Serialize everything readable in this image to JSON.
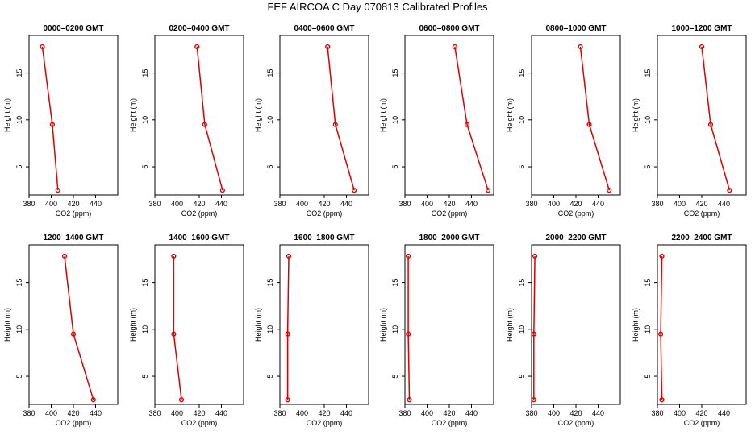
{
  "title": "FEF AIRCOA C  Day 070813  Calibrated Profiles",
  "chart_data": [
    {
      "type": "line",
      "title": "0000–0200 GMT",
      "xlabel": "CO2 (ppm)",
      "ylabel": "Height (m)",
      "xlim": [
        380,
        460
      ],
      "ylim": [
        2,
        19
      ],
      "xticks": [
        380,
        400,
        420,
        440
      ],
      "yticks": [
        5,
        10,
        15
      ],
      "grid": false,
      "series": [
        {
          "x": [
            392,
            401,
            406
          ],
          "y": [
            17.8,
            9.5,
            2.5
          ]
        }
      ]
    },
    {
      "type": "line",
      "title": "0200–0400 GMT",
      "xlabel": "CO2 (ppm)",
      "ylabel": "Height (m)",
      "xlim": [
        380,
        460
      ],
      "ylim": [
        2,
        19
      ],
      "xticks": [
        380,
        400,
        420,
        440
      ],
      "yticks": [
        5,
        10,
        15
      ],
      "grid": false,
      "series": [
        {
          "x": [
            418,
            425,
            441
          ],
          "y": [
            17.8,
            9.5,
            2.5
          ]
        }
      ]
    },
    {
      "type": "line",
      "title": "0400–0600 GMT",
      "xlabel": "CO2 (ppm)",
      "ylabel": "Height (m)",
      "xlim": [
        380,
        460
      ],
      "ylim": [
        2,
        19
      ],
      "xticks": [
        380,
        400,
        420,
        440
      ],
      "yticks": [
        5,
        10,
        15
      ],
      "grid": false,
      "series": [
        {
          "x": [
            423,
            430,
            447
          ],
          "y": [
            17.8,
            9.5,
            2.5
          ]
        }
      ]
    },
    {
      "type": "line",
      "title": "0600–0800 GMT",
      "xlabel": "CO2 (ppm)",
      "ylabel": "Height (m)",
      "xlim": [
        380,
        460
      ],
      "ylim": [
        2,
        19
      ],
      "xticks": [
        380,
        400,
        420,
        440
      ],
      "yticks": [
        5,
        10,
        15
      ],
      "grid": false,
      "series": [
        {
          "x": [
            425,
            436,
            455
          ],
          "y": [
            17.8,
            9.5,
            2.5
          ]
        }
      ]
    },
    {
      "type": "line",
      "title": "0800–1000 GMT",
      "xlabel": "CO2 (ppm)",
      "ylabel": "Height (m)",
      "xlim": [
        380,
        460
      ],
      "ylim": [
        2,
        19
      ],
      "xticks": [
        380,
        400,
        420,
        440
      ],
      "yticks": [
        5,
        10,
        15
      ],
      "grid": false,
      "series": [
        {
          "x": [
            424,
            432,
            450
          ],
          "y": [
            17.8,
            9.5,
            2.5
          ]
        }
      ]
    },
    {
      "type": "line",
      "title": "1000–1200 GMT",
      "xlabel": "CO2 (ppm)",
      "ylabel": "Height (m)",
      "xlim": [
        380,
        460
      ],
      "ylim": [
        2,
        19
      ],
      "xticks": [
        380,
        400,
        420,
        440
      ],
      "yticks": [
        5,
        10,
        15
      ],
      "grid": false,
      "series": [
        {
          "x": [
            420,
            428,
            445
          ],
          "y": [
            17.8,
            9.5,
            2.5
          ]
        }
      ]
    },
    {
      "type": "line",
      "title": "1200–1400 GMT",
      "xlabel": "CO2 (ppm)",
      "ylabel": "Height (m)",
      "xlim": [
        380,
        460
      ],
      "ylim": [
        2,
        19
      ],
      "xticks": [
        380,
        400,
        420,
        440
      ],
      "yticks": [
        5,
        10,
        15
      ],
      "grid": false,
      "series": [
        {
          "x": [
            412,
            420,
            438
          ],
          "y": [
            17.8,
            9.5,
            2.5
          ]
        }
      ]
    },
    {
      "type": "line",
      "title": "1400–1600 GMT",
      "xlabel": "CO2 (ppm)",
      "ylabel": "Height (m)",
      "xlim": [
        380,
        460
      ],
      "ylim": [
        2,
        19
      ],
      "xticks": [
        380,
        400,
        420,
        440
      ],
      "yticks": [
        5,
        10,
        15
      ],
      "grid": false,
      "series": [
        {
          "x": [
            397,
            397,
            404
          ],
          "y": [
            17.8,
            9.5,
            2.5
          ]
        }
      ]
    },
    {
      "type": "line",
      "title": "1600–1800 GMT",
      "xlabel": "CO2 (ppm)",
      "ylabel": "Height (m)",
      "xlim": [
        380,
        460
      ],
      "ylim": [
        2,
        19
      ],
      "xticks": [
        380,
        400,
        420,
        440
      ],
      "yticks": [
        5,
        10,
        15
      ],
      "grid": false,
      "series": [
        {
          "x": [
            388,
            387,
            387
          ],
          "y": [
            17.8,
            9.5,
            2.5
          ]
        }
      ]
    },
    {
      "type": "line",
      "title": "1800–2000 GMT",
      "xlabel": "CO2 (ppm)",
      "ylabel": "Height (m)",
      "xlim": [
        380,
        460
      ],
      "ylim": [
        2,
        19
      ],
      "xticks": [
        380,
        400,
        420,
        440
      ],
      "yticks": [
        5,
        10,
        15
      ],
      "grid": false,
      "series": [
        {
          "x": [
            383,
            383,
            384
          ],
          "y": [
            17.8,
            9.5,
            2.5
          ]
        }
      ]
    },
    {
      "type": "line",
      "title": "2000–2200 GMT",
      "xlabel": "CO2 (ppm)",
      "ylabel": "Height (m)",
      "xlim": [
        380,
        460
      ],
      "ylim": [
        2,
        19
      ],
      "xticks": [
        380,
        400,
        420,
        440
      ],
      "yticks": [
        5,
        10,
        15
      ],
      "grid": false,
      "series": [
        {
          "x": [
            383,
            382,
            382
          ],
          "y": [
            17.8,
            9.5,
            2.5
          ]
        }
      ]
    },
    {
      "type": "line",
      "title": "2200–2400 GMT",
      "xlabel": "CO2 (ppm)",
      "ylabel": "Height (m)",
      "xlim": [
        380,
        460
      ],
      "ylim": [
        2,
        19
      ],
      "xticks": [
        380,
        400,
        420,
        440
      ],
      "yticks": [
        5,
        10,
        15
      ],
      "grid": false,
      "series": [
        {
          "x": [
            384,
            383,
            384
          ],
          "y": [
            17.8,
            9.5,
            2.5
          ]
        }
      ]
    }
  ],
  "colors": {
    "series": "#dd0000",
    "axis": "#000000",
    "background": "#ffffff"
  }
}
